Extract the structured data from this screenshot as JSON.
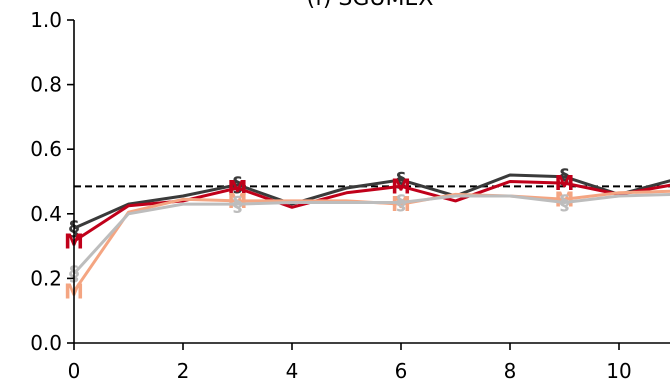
{
  "chart_data": {
    "type": "line",
    "title": "(f) SGUMEX",
    "xlabel": "",
    "ylabel": "",
    "xlim": [
      0,
      11
    ],
    "ylim": [
      0,
      1.0
    ],
    "x_ticks": [
      0,
      2,
      4,
      6,
      8,
      10
    ],
    "y_ticks": [
      0.0,
      0.2,
      0.4,
      0.6,
      0.8,
      1.0
    ],
    "x_tick_labels": [
      "0",
      "2",
      "4",
      "6",
      "8",
      "10"
    ],
    "y_tick_labels": [
      "0.0",
      "0.2",
      "0.4",
      "0.6",
      "0.8",
      "1.0"
    ],
    "grid": false,
    "reference_line": {
      "y": 0.485,
      "style": "dashed",
      "color": "#000000"
    },
    "x": [
      0,
      1,
      2,
      3,
      4,
      5,
      6,
      7,
      8,
      9,
      10,
      11
    ],
    "marker_x": [
      0,
      3,
      6,
      9
    ],
    "series": [
      {
        "color": "#3a3a3a",
        "marker": "§",
        "values": [
          0.355,
          0.43,
          0.455,
          0.49,
          0.43,
          0.48,
          0.505,
          0.455,
          0.52,
          0.515,
          0.46,
          0.505
        ]
      },
      {
        "color": "#c0001a",
        "marker": "M",
        "values": [
          0.315,
          0.425,
          0.44,
          0.48,
          0.42,
          0.465,
          0.485,
          0.44,
          0.5,
          0.495,
          0.46,
          0.49
        ]
      },
      {
        "color": "#f4a582",
        "marker": "M",
        "values": [
          0.16,
          0.405,
          0.445,
          0.44,
          0.44,
          0.44,
          0.43,
          0.46,
          0.455,
          0.445,
          0.465,
          0.47
        ]
      },
      {
        "color": "#bdbdbd",
        "marker": "§",
        "values": [
          0.215,
          0.4,
          0.43,
          0.43,
          0.435,
          0.435,
          0.435,
          0.455,
          0.455,
          0.435,
          0.455,
          0.46
        ]
      }
    ]
  }
}
